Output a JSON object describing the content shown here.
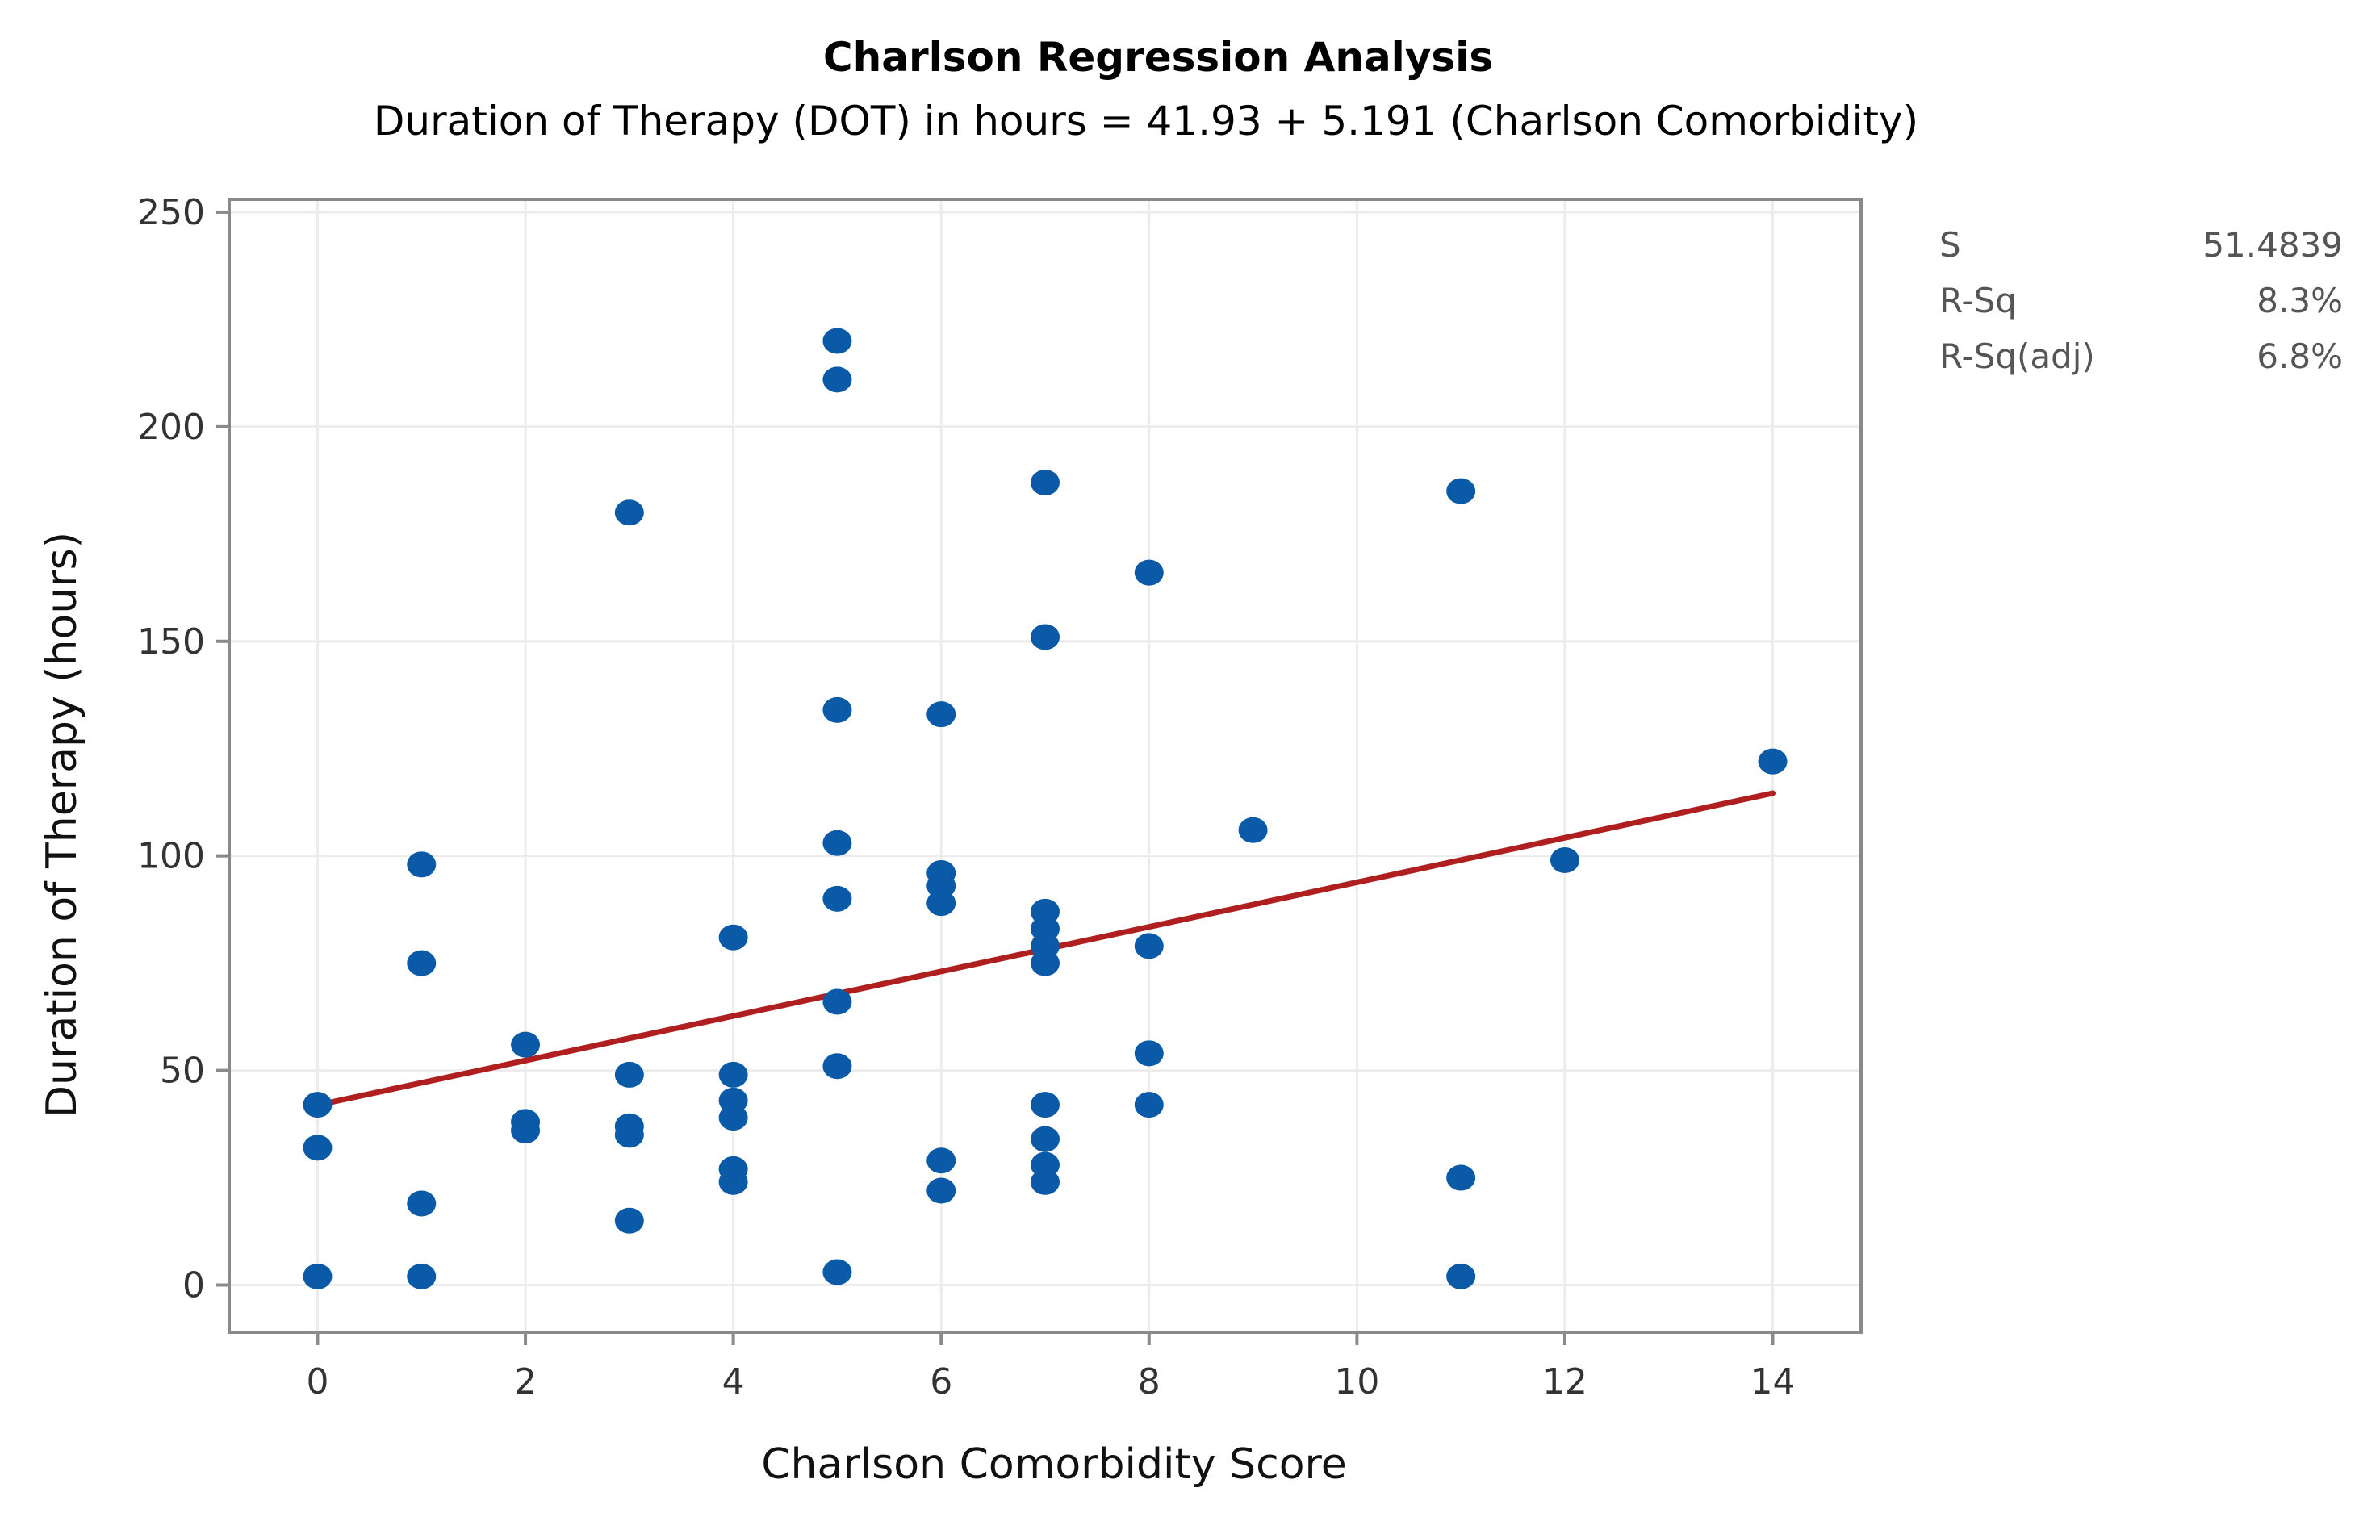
{
  "chart_data": {
    "type": "scatter",
    "title": "Charlson Regression Analysis",
    "subtitle": "Duration of Therapy (DOT) in hours = 41.93 + 5.191 (Charlson Comorbidity)",
    "xlabel": "Charlson Comorbidity Score",
    "ylabel": "Duration of Therapy (hours)",
    "xlim": [
      -0.85,
      14.85
    ],
    "ylim": [
      -11,
      253
    ],
    "xticks": [
      0,
      2,
      4,
      6,
      8,
      10,
      12,
      14
    ],
    "yticks": [
      0,
      50,
      100,
      150,
      200,
      250
    ],
    "grid": true,
    "points": [
      {
        "x": 0,
        "y": 42
      },
      {
        "x": 0,
        "y": 32
      },
      {
        "x": 0,
        "y": 2
      },
      {
        "x": 1,
        "y": 98
      },
      {
        "x": 1,
        "y": 75
      },
      {
        "x": 1,
        "y": 19
      },
      {
        "x": 1,
        "y": 2
      },
      {
        "x": 2,
        "y": 56
      },
      {
        "x": 2,
        "y": 38
      },
      {
        "x": 2,
        "y": 36
      },
      {
        "x": 3,
        "y": 180
      },
      {
        "x": 3,
        "y": 49
      },
      {
        "x": 3,
        "y": 37
      },
      {
        "x": 3,
        "y": 35
      },
      {
        "x": 3,
        "y": 15
      },
      {
        "x": 4,
        "y": 81
      },
      {
        "x": 4,
        "y": 49
      },
      {
        "x": 4,
        "y": 43
      },
      {
        "x": 4,
        "y": 39
      },
      {
        "x": 4,
        "y": 27
      },
      {
        "x": 4,
        "y": 24
      },
      {
        "x": 5,
        "y": 220
      },
      {
        "x": 5,
        "y": 211
      },
      {
        "x": 5,
        "y": 134
      },
      {
        "x": 5,
        "y": 103
      },
      {
        "x": 5,
        "y": 90
      },
      {
        "x": 5,
        "y": 66
      },
      {
        "x": 5,
        "y": 51
      },
      {
        "x": 5,
        "y": 3
      },
      {
        "x": 6,
        "y": 133
      },
      {
        "x": 6,
        "y": 96
      },
      {
        "x": 6,
        "y": 93
      },
      {
        "x": 6,
        "y": 89
      },
      {
        "x": 6,
        "y": 29
      },
      {
        "x": 6,
        "y": 22
      },
      {
        "x": 7,
        "y": 187
      },
      {
        "x": 7,
        "y": 151
      },
      {
        "x": 7,
        "y": 87
      },
      {
        "x": 7,
        "y": 83
      },
      {
        "x": 7,
        "y": 79
      },
      {
        "x": 7,
        "y": 75
      },
      {
        "x": 7,
        "y": 42
      },
      {
        "x": 7,
        "y": 34
      },
      {
        "x": 7,
        "y": 28
      },
      {
        "x": 7,
        "y": 24
      },
      {
        "x": 8,
        "y": 166
      },
      {
        "x": 8,
        "y": 79
      },
      {
        "x": 8,
        "y": 54
      },
      {
        "x": 8,
        "y": 42
      },
      {
        "x": 9,
        "y": 106
      },
      {
        "x": 11,
        "y": 185
      },
      {
        "x": 11,
        "y": 25
      },
      {
        "x": 11,
        "y": 2
      },
      {
        "x": 12,
        "y": 99
      },
      {
        "x": 14,
        "y": 122
      }
    ],
    "fit_line": {
      "intercept": 41.93,
      "slope": 5.191,
      "x_range": [
        0,
        14
      ]
    },
    "stats": [
      {
        "label": "S",
        "value": "51.4839"
      },
      {
        "label": "R-Sq",
        "value": "8.3%"
      },
      {
        "label": "R-Sq(adj)",
        "value": "6.8%"
      }
    ],
    "colors": {
      "points": "#0a5aa8",
      "fit_line": "#b01f1f"
    }
  }
}
